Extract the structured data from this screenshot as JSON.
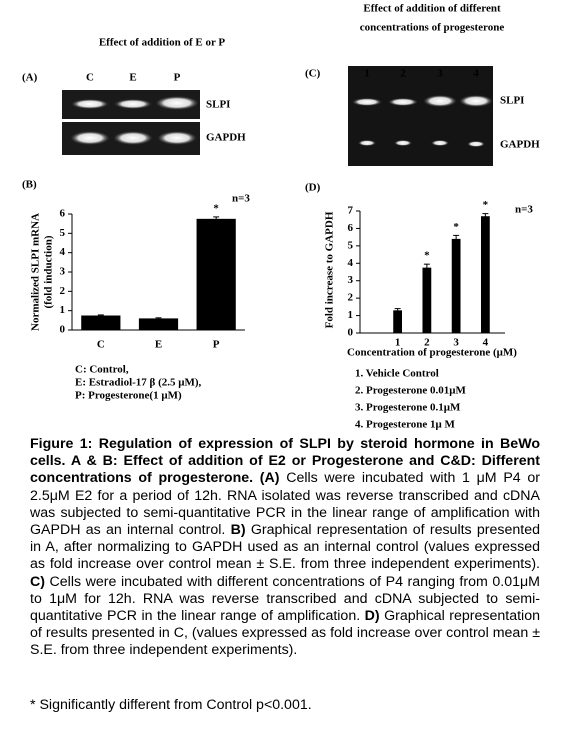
{
  "panel_a": {
    "label": "(A)",
    "title": "Effect of addition of E or P",
    "lanes": [
      "C",
      "E",
      "P"
    ],
    "bands": [
      "SLPI",
      "GAPDH"
    ]
  },
  "panel_c": {
    "label": "(C)",
    "title": [
      "Effect of addition of different",
      "concentrations of progesterone"
    ],
    "lanes": [
      "1",
      "2",
      "3",
      "4"
    ],
    "bands": [
      "SLPI",
      "GAPDH"
    ]
  },
  "chart_data": [
    {
      "type": "bar",
      "panel_label": "(B)",
      "ylabel": [
        "Normalized SLPI mRNA",
        "(fold induction)"
      ],
      "categories": [
        "C",
        "E",
        "P"
      ],
      "values": [
        0.75,
        0.6,
        5.75
      ],
      "errors": [
        0.03,
        0.03,
        0.1
      ],
      "significant": [
        false,
        false,
        true
      ],
      "significance_mark": "*",
      "annotation": "n=3",
      "ylim": [
        0,
        6
      ],
      "yticks": [
        0,
        1,
        2,
        3,
        4,
        5,
        6
      ],
      "color": "#000000",
      "notes": [
        "C: Control,",
        "E: Estradiol-17 β (2.5 μM),",
        "P: Progesterone(1 μM)"
      ]
    },
    {
      "type": "bar",
      "panel_label": "(D)",
      "ylabel": [
        "Fold increase to GAPDH"
      ],
      "xlabel": "Concentration of progesterone (μM)",
      "categories": [
        "1",
        "2",
        "3",
        "4"
      ],
      "values": [
        1.3,
        3.75,
        5.4,
        6.7
      ],
      "errors": [
        0.1,
        0.2,
        0.2,
        0.15
      ],
      "significant": [
        false,
        true,
        true,
        true
      ],
      "significance_mark": "*",
      "annotation": "n=3",
      "ylim": [
        0,
        7
      ],
      "yticks": [
        0,
        1,
        2,
        3,
        4,
        5,
        6,
        7
      ],
      "color": "#000000",
      "notes": [
        "1. Vehicle Control",
        "2. Progesterone 0.01μM",
        "3. Progesterone 0.1μM",
        "4. Progesterone 1μ M"
      ]
    }
  ],
  "caption": [
    {
      "text": "Figure 1: Regulation of expression of SLPI by steroid hormone in BeWo cells. A & B: Effect of addition of E2 or Progesterone and C&D: Different concentrations of progesterone.",
      "bold": true
    },
    {
      "text": "(A)",
      "bold": true
    },
    {
      "text": "Cells were incubated with 1 μM P4 or 2.5μM E2 for a period of 12h. RNA isolated was reverse transcribed and cDNA was subjected to semi-quantitative PCR in the linear range of amplification with GAPDH as an internal control.",
      "bold": false
    },
    {
      "text": "B)",
      "bold": true
    },
    {
      "text": "Graphical representation of results presented in A, after normalizing to GAPDH used as an internal control (values expressed as fold increase over control mean ± S.E. from three independent experiments).",
      "bold": false
    },
    {
      "text": "C)",
      "bold": true
    },
    {
      "text": "Cells were incubated with different concentrations of P4 ranging from 0.01μM to 1μM for 12h. RNA was reverse transcribed and cDNA subjected to semi-quantitative PCR in the linear range of amplification.",
      "bold": false
    },
    {
      "text": "D)",
      "bold": true
    },
    {
      "text": "Graphical representation of results presented in C, (values expressed as fold increase over control mean ± S.E. from three independent experiments).",
      "bold": false
    }
  ],
  "footnote": "* Significantly different from Control p<0.001."
}
